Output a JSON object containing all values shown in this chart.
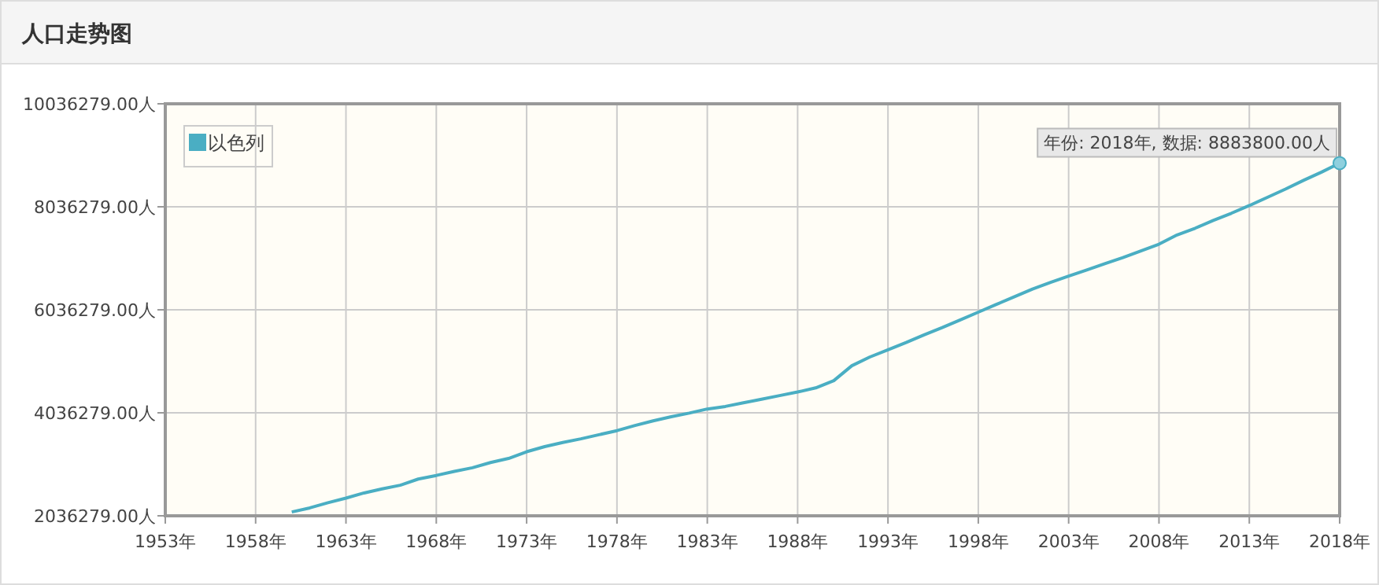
{
  "chart_data": {
    "type": "line",
    "title": "人口走势图",
    "x": [
      1960,
      1961,
      1962,
      1963,
      1964,
      1965,
      1966,
      1967,
      1968,
      1969,
      1970,
      1971,
      1972,
      1973,
      1974,
      1975,
      1976,
      1977,
      1978,
      1979,
      1980,
      1981,
      1982,
      1983,
      1984,
      1985,
      1986,
      1987,
      1988,
      1989,
      1990,
      1991,
      1992,
      1993,
      1994,
      1995,
      1996,
      1997,
      1998,
      1999,
      2000,
      2001,
      2002,
      2003,
      2004,
      2005,
      2006,
      2007,
      2008,
      2009,
      2010,
      2011,
      2012,
      2013,
      2014,
      2015,
      2016,
      2017,
      2018
    ],
    "series": [
      {
        "name": "以色列",
        "color": "#4aaec3",
        "values": [
          2110000,
          2190000,
          2290000,
          2380000,
          2480000,
          2560000,
          2630000,
          2750000,
          2820000,
          2900000,
          2970000,
          3070000,
          3150000,
          3280000,
          3380000,
          3460000,
          3530000,
          3610000,
          3690000,
          3790000,
          3880000,
          3960000,
          4030000,
          4110000,
          4160000,
          4230000,
          4300000,
          4370000,
          4440000,
          4520000,
          4660000,
          4950000,
          5120000,
          5260000,
          5400000,
          5550000,
          5690000,
          5840000,
          5990000,
          6140000,
          6290000,
          6440000,
          6570000,
          6690000,
          6810000,
          6930000,
          7050000,
          7180000,
          7310000,
          7490000,
          7620000,
          7770000,
          7910000,
          8060000,
          8220000,
          8380000,
          8550000,
          8710000,
          8883800
        ]
      }
    ],
    "xlim": [
      1953,
      2018
    ],
    "xticks": [
      {
        "value": 1953,
        "label": "1953年"
      },
      {
        "value": 1958,
        "label": "1958年"
      },
      {
        "value": 1963,
        "label": "1963年"
      },
      {
        "value": 1968,
        "label": "1968年"
      },
      {
        "value": 1973,
        "label": "1973年"
      },
      {
        "value": 1978,
        "label": "1978年"
      },
      {
        "value": 1983,
        "label": "1983年"
      },
      {
        "value": 1988,
        "label": "1988年"
      },
      {
        "value": 1993,
        "label": "1993年"
      },
      {
        "value": 1998,
        "label": "1998年"
      },
      {
        "value": 2003,
        "label": "2003年"
      },
      {
        "value": 2008,
        "label": "2008年"
      },
      {
        "value": 2013,
        "label": "2013年"
      },
      {
        "value": 2018,
        "label": "2018年"
      }
    ],
    "ylim": [
      2036279,
      10036279
    ],
    "yticks": [
      {
        "value": 2036279,
        "label": "2036279.00人"
      },
      {
        "value": 4036279,
        "label": "4036279.00人"
      },
      {
        "value": 6036279,
        "label": "6036279.00人"
      },
      {
        "value": 8036279,
        "label": "8036279.00人"
      },
      {
        "value": 10036279,
        "label": "10036279.00人"
      }
    ],
    "annotations": [
      {
        "text": "年份: 2018年, 数据: 8883800.00人",
        "x": 2018,
        "y": 8883800
      }
    ],
    "grid": true,
    "legend": "top left",
    "marker": "none",
    "line_style": "solid"
  }
}
